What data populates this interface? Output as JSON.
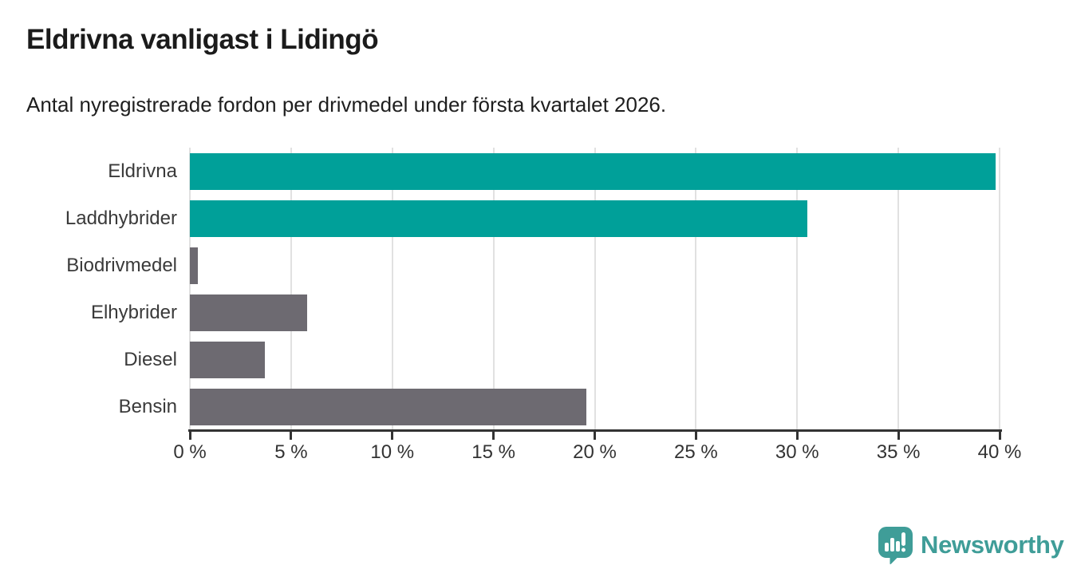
{
  "chart_data": {
    "type": "bar",
    "orientation": "horizontal",
    "title": "Eldrivna vanligast i Lidingö",
    "subtitle": "Antal nyregistrerade fordon per drivmedel under första kvartalet 2026.",
    "categories": [
      "Eldrivna",
      "Laddhybrider",
      "Biodrivmedel",
      "Elhybrider",
      "Diesel",
      "Bensin"
    ],
    "values": [
      39.8,
      30.5,
      0.4,
      5.8,
      3.7,
      19.6
    ],
    "unit": "%",
    "xlim": [
      0,
      40
    ],
    "x_ticks": [
      "0 %",
      "5 %",
      "10 %",
      "15 %",
      "20 %",
      "25 %",
      "30 %",
      "35 %",
      "40 %"
    ],
    "bar_colors": [
      "#00a099",
      "#00a099",
      "#6d6a71",
      "#6d6a71",
      "#6d6a71",
      "#6d6a71"
    ],
    "grid": true,
    "legend": false
  },
  "branding": {
    "logo_text": "Newsworthy",
    "logo_color": "#3f9d98",
    "logo_icon": "newsworthy-speech-bubble-bar-chart-icon"
  },
  "colors": {
    "accent_teal": "#00a099",
    "bar_gray": "#6d6a71",
    "axis": "#333333",
    "gridline": "#e1e1e1",
    "title_text": "#1b1b1b",
    "label_text": "#3a3a3a",
    "background": "#ffffff"
  }
}
